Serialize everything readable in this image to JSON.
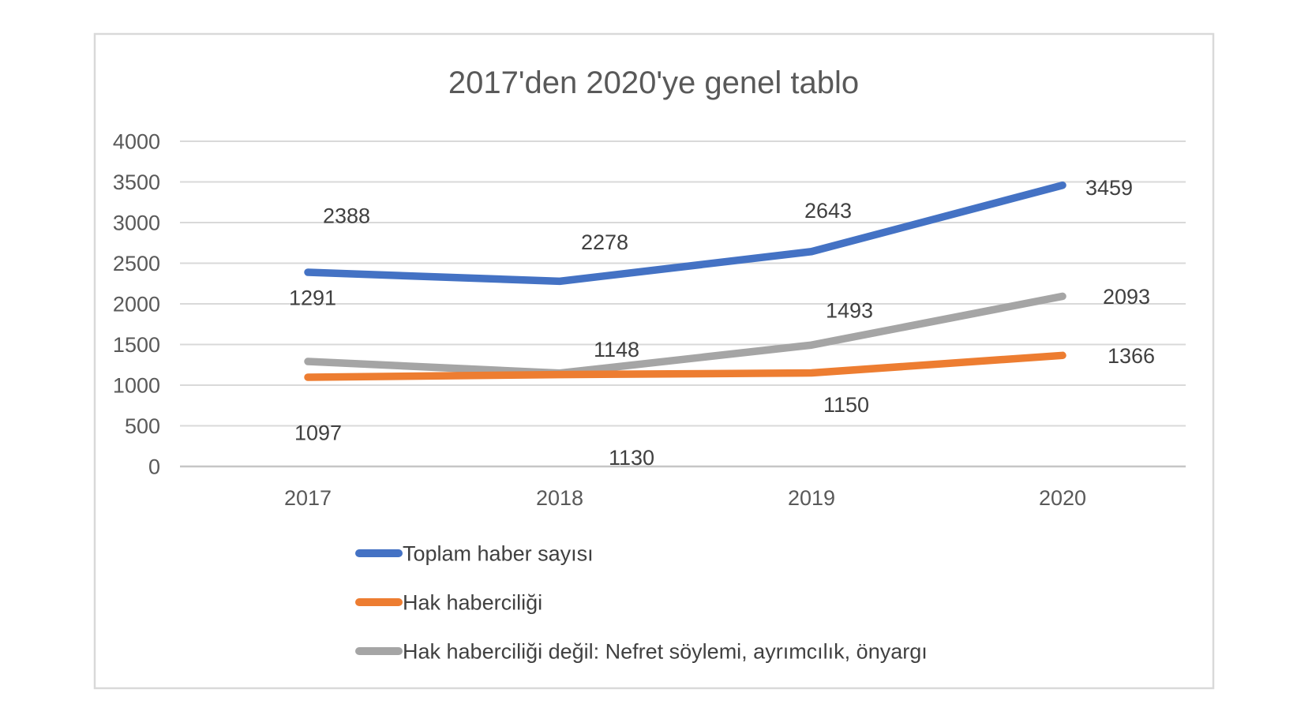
{
  "chart_data": {
    "type": "line",
    "title": "2017'den 2020'ye genel tablo",
    "categories": [
      "2017",
      "2018",
      "2019",
      "2020"
    ],
    "series": [
      {
        "name": "Toplam haber sayısı",
        "color": "#4472C4",
        "values": [
          2388,
          2278,
          2643,
          3459
        ]
      },
      {
        "name": "Hak haberciliği",
        "color": "#ED7D31",
        "values": [
          1097,
          1130,
          1150,
          1366
        ]
      },
      {
        "name": "Hak haberciliği değil: Nefret söylemi, ayrımcılık, önyargı",
        "color": "#A5A5A5",
        "values": [
          1291,
          1148,
          1493,
          2093
        ]
      }
    ],
    "y_axis": {
      "min": 0,
      "max": 4000,
      "step": 500,
      "tick_labels": [
        "4000",
        "3500",
        "3000",
        "2500",
        "2000",
        "1500",
        "1000",
        "500",
        "0"
      ]
    },
    "xlabel": "",
    "ylabel": "",
    "grid": true,
    "legend_position": "bottom-left",
    "data_labels": true,
    "colors": {
      "gridline": "#D9D9D9",
      "axis_line": "#C6C6C6",
      "axis_text": "#595959",
      "label_text": "#404040",
      "title_text": "#595959",
      "frame_border": "#D9D9D9"
    }
  }
}
